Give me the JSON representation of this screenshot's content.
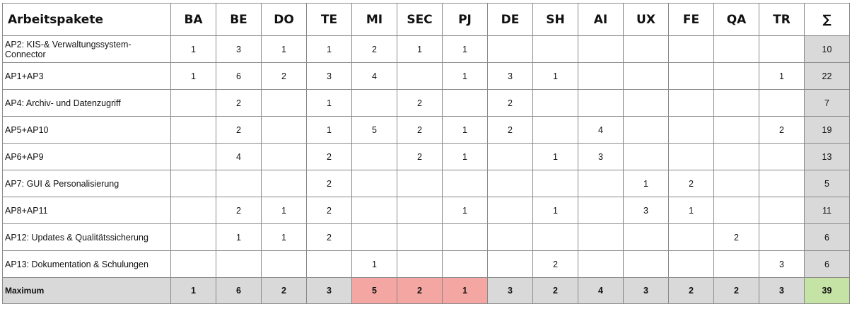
{
  "table": {
    "header_label": "Arbeitspakete",
    "columns": [
      "BA",
      "BE",
      "DO",
      "TE",
      "MI",
      "SEC",
      "PJ",
      "DE",
      "SH",
      "AI",
      "UX",
      "FE",
      "QA",
      "TR",
      "∑"
    ],
    "rows": [
      {
        "label": "AP2: KIS-& Verwaltungssystem-Connector",
        "cells": [
          "1",
          "3",
          "1",
          "1",
          "2",
          "1",
          "1",
          "",
          "",
          "",
          "",
          "",
          "",
          "",
          "10"
        ]
      },
      {
        "label": "AP1+AP3",
        "cells": [
          "1",
          "6",
          "2",
          "3",
          "4",
          "",
          "1",
          "3",
          "1",
          "",
          "",
          "",
          "",
          "1",
          "22"
        ]
      },
      {
        "label": "AP4: Archiv- und Datenzugriff",
        "cells": [
          "",
          "2",
          "",
          "1",
          "",
          "2",
          "",
          "2",
          "",
          "",
          "",
          "",
          "",
          "",
          "7"
        ]
      },
      {
        "label": "AP5+AP10",
        "cells": [
          "",
          "2",
          "",
          "1",
          "5",
          "2",
          "1",
          "2",
          "",
          "4",
          "",
          "",
          "",
          "2",
          "19"
        ]
      },
      {
        "label": "AP6+AP9",
        "cells": [
          "",
          "4",
          "",
          "2",
          "",
          "2",
          "1",
          "",
          "1",
          "3",
          "",
          "",
          "",
          "",
          "13"
        ]
      },
      {
        "label": "AP7: GUI & Personalisierung",
        "cells": [
          "",
          "",
          "",
          "2",
          "",
          "",
          "",
          "",
          "",
          "",
          "1",
          "2",
          "",
          "",
          "5"
        ]
      },
      {
        "label": "AP8+AP11",
        "cells": [
          "",
          "2",
          "1",
          "2",
          "",
          "",
          "1",
          "",
          "1",
          "",
          "3",
          "1",
          "",
          "",
          "11"
        ]
      },
      {
        "label": "AP12: Updates & Qualitätssicherung",
        "cells": [
          "",
          "1",
          "1",
          "2",
          "",
          "",
          "",
          "",
          "",
          "",
          "",
          "",
          "2",
          "",
          "6"
        ]
      },
      {
        "label": "AP13: Dokumentation & Schulungen",
        "cells": [
          "",
          "",
          "",
          "",
          "1",
          "",
          "",
          "",
          "2",
          "",
          "",
          "",
          "",
          "3",
          "6"
        ]
      }
    ],
    "maximum": {
      "label": "Maximum",
      "cells": [
        "1",
        "6",
        "2",
        "3",
        "5",
        "2",
        "1",
        "3",
        "2",
        "4",
        "3",
        "2",
        "2",
        "3",
        "39"
      ]
    }
  },
  "colors": {
    "sum_column": "#d9d9d9",
    "maximum_row": "#d9d9d9",
    "highlight_red": "#f4a6a2",
    "highlight_green": "#c6e3a6"
  }
}
